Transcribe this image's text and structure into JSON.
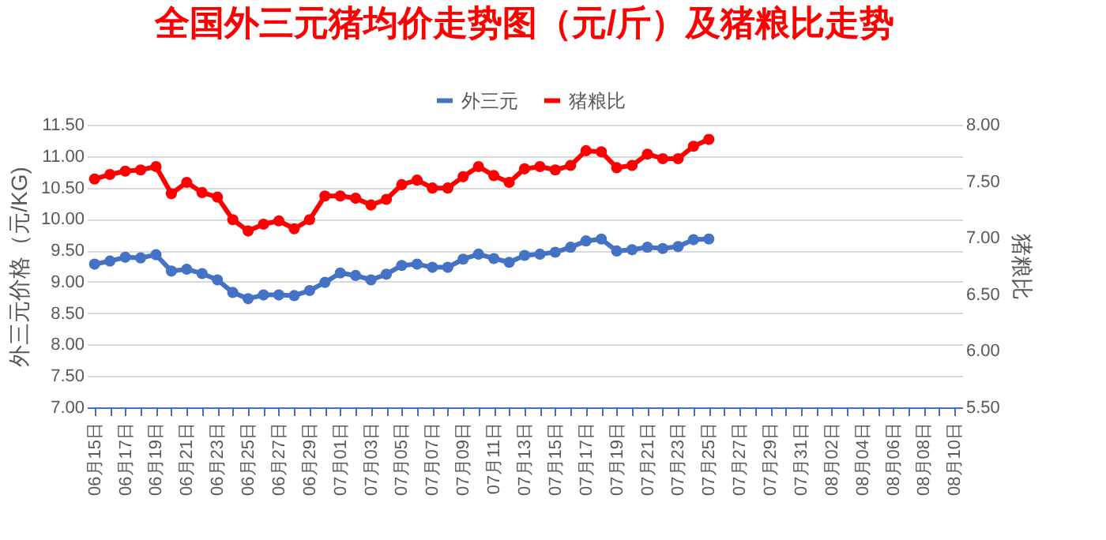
{
  "chart_data": {
    "type": "line",
    "title": "全国外三元猪均价走势图（元/斤）及猪粮比走势",
    "ylabel": "外三元价格（元/KG)",
    "y2label": "猪粮比",
    "categories": [
      "06月15日",
      null,
      "06月17日",
      null,
      "06月19日",
      null,
      "06月21日",
      null,
      "06月23日",
      null,
      "06月25日",
      null,
      "06月27日",
      null,
      "06月29日",
      null,
      "07月01日",
      null,
      "07月03日",
      null,
      "07月05日",
      null,
      "07月07日",
      null,
      "07月09日",
      null,
      "07月11日",
      null,
      "07月13日",
      null,
      "07月15日",
      null,
      "07月17日",
      null,
      "07月19日",
      null,
      "07月21日",
      null,
      "07月23日",
      null,
      "07月25日",
      null,
      "07月27日",
      null,
      "07月29日",
      null,
      "07月31日",
      null,
      "08月02日",
      null,
      "08月04日",
      null,
      "08月06日",
      null,
      "08月08日",
      null,
      "08月10日"
    ],
    "series": [
      {
        "name": "外三元",
        "color": "#4472c4",
        "values": [
          9.28,
          9.33,
          9.39,
          9.38,
          9.43,
          9.17,
          9.2,
          9.13,
          9.03,
          8.83,
          8.73,
          8.79,
          8.79,
          8.78,
          8.86,
          8.99,
          9.14,
          9.1,
          9.03,
          9.12,
          9.26,
          9.28,
          9.23,
          9.23,
          9.36,
          9.44,
          9.37,
          9.31,
          9.42,
          9.44,
          9.47,
          9.55,
          9.65,
          9.68,
          9.49,
          9.51,
          9.55,
          9.53,
          9.56,
          9.67,
          9.68,
          null,
          null,
          null,
          null,
          null,
          null,
          null,
          null,
          null,
          null,
          null,
          null,
          null,
          null,
          null,
          null
        ]
      },
      {
        "name": "猪粮比",
        "color": "#ff0000",
        "axis": "y2",
        "values": [
          7.52,
          7.56,
          7.59,
          7.6,
          7.63,
          7.39,
          7.49,
          7.4,
          7.36,
          7.16,
          7.06,
          7.12,
          7.15,
          7.08,
          7.16,
          7.37,
          7.37,
          7.35,
          7.29,
          7.34,
          7.47,
          7.51,
          7.44,
          7.44,
          7.54,
          7.63,
          7.55,
          7.49,
          7.61,
          7.63,
          7.6,
          7.64,
          7.77,
          7.76,
          7.62,
          7.64,
          7.74,
          7.7,
          7.7,
          7.81,
          7.87,
          null,
          null,
          null,
          null,
          null,
          null,
          null,
          null,
          null,
          null,
          null,
          null,
          null,
          null,
          null,
          null
        ]
      }
    ],
    "ylim": [
      7,
      11.5
    ],
    "yticks": [
      {
        "value": 7,
        "label": "7.00"
      },
      {
        "value": 7.5,
        "label": "7.50"
      },
      {
        "value": 8,
        "label": "8.00"
      },
      {
        "value": 8.5,
        "label": "8.50"
      },
      {
        "value": 9,
        "label": "9.00"
      },
      {
        "value": 9.5,
        "label": "9.50"
      },
      {
        "value": 10,
        "label": "10.00"
      },
      {
        "value": 10.5,
        "label": "10.50"
      },
      {
        "value": 11,
        "label": "11.00"
      },
      {
        "value": 11.5,
        "label": "11.50"
      }
    ],
    "y2lim": [
      5.5,
      8
    ],
    "y2ticks": [
      {
        "value": 5.5,
        "label": "5.50"
      },
      {
        "value": 6,
        "label": "6.00"
      },
      {
        "value": 6.5,
        "label": "6.50"
      },
      {
        "value": 7,
        "label": "7.00"
      },
      {
        "value": 7.5,
        "label": "7.50"
      },
      {
        "value": 8,
        "label": "8.00"
      }
    ],
    "grid": "y",
    "legend": "top",
    "marker": "circle",
    "line_style": "solid"
  }
}
